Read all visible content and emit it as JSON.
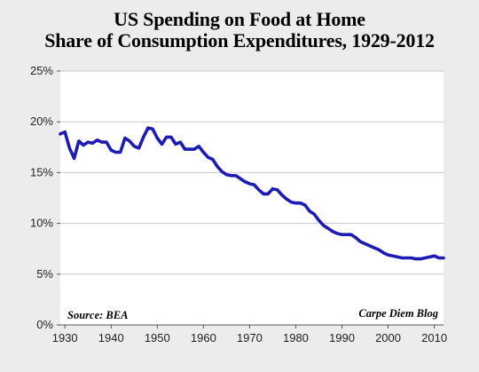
{
  "chart_data": {
    "type": "line",
    "title_lines": [
      "US Spending on Food at Home",
      "Share of Consumption Expenditures, 1929-2012"
    ],
    "xlabel": "",
    "ylabel": "",
    "xlim": [
      1929,
      2012
    ],
    "ylim": [
      0,
      25
    ],
    "x_ticks": [
      {
        "value": 1930,
        "label": "1930"
      },
      {
        "value": 1940,
        "label": "1940"
      },
      {
        "value": 1950,
        "label": "1950"
      },
      {
        "value": 1960,
        "label": "1960"
      },
      {
        "value": 1970,
        "label": "1970"
      },
      {
        "value": 1980,
        "label": "1980"
      },
      {
        "value": 1990,
        "label": "1990"
      },
      {
        "value": 2000,
        "label": "2000"
      },
      {
        "value": 2010,
        "label": "2010"
      }
    ],
    "y_ticks": [
      {
        "value": 0,
        "label": "0%"
      },
      {
        "value": 5,
        "label": "5%"
      },
      {
        "value": 10,
        "label": "10%"
      },
      {
        "value": 15,
        "label": "15%"
      },
      {
        "value": 20,
        "label": "20%"
      },
      {
        "value": 25,
        "label": "25%"
      }
    ],
    "grid": true,
    "source_note": "Source: BEA",
    "credit_note": "Carpe Diem Blog",
    "colors": {
      "line": "#1c1cb4",
      "plot_background": "#ffffff",
      "page_background": "#ececec",
      "grid": "#c8c8c8",
      "axis": "#555555"
    },
    "series": [
      {
        "x": [
          1929,
          1930,
          1931,
          1932,
          1933,
          1934,
          1935,
          1936,
          1937,
          1938,
          1939,
          1940,
          1941,
          1942,
          1943,
          1944,
          1945,
          1946,
          1947,
          1948,
          1949,
          1950,
          1951,
          1952,
          1953,
          1954,
          1955,
          1956,
          1957,
          1958,
          1959,
          1960,
          1961,
          1962,
          1963,
          1964,
          1965,
          1966,
          1967,
          1968,
          1969,
          1970,
          1971,
          1972,
          1973,
          1974,
          1975,
          1976,
          1977,
          1978,
          1979,
          1980,
          1981,
          1982,
          1983,
          1984,
          1985,
          1986,
          1987,
          1988,
          1989,
          1990,
          1991,
          1992,
          1993,
          1994,
          1995,
          1996,
          1997,
          1998,
          1999,
          2000,
          2001,
          2002,
          2003,
          2004,
          2005,
          2006,
          2007,
          2008,
          2009,
          2010,
          2011,
          2012
        ],
        "values": [
          18.8,
          19.0,
          17.4,
          16.4,
          18.1,
          17.7,
          18.0,
          17.9,
          18.2,
          18.0,
          18.0,
          17.2,
          17.0,
          17.0,
          18.4,
          18.1,
          17.6,
          17.4,
          18.5,
          19.4,
          19.3,
          18.4,
          17.8,
          18.5,
          18.5,
          17.8,
          18.0,
          17.3,
          17.3,
          17.3,
          17.6,
          17.0,
          16.5,
          16.3,
          15.6,
          15.1,
          14.8,
          14.7,
          14.7,
          14.4,
          14.1,
          13.9,
          13.8,
          13.3,
          12.9,
          12.9,
          13.4,
          13.3,
          12.8,
          12.4,
          12.1,
          12.0,
          12.0,
          11.8,
          11.2,
          10.9,
          10.3,
          9.8,
          9.5,
          9.2,
          9.0,
          8.9,
          8.9,
          8.9,
          8.6,
          8.2,
          8.0,
          7.8,
          7.6,
          7.4,
          7.1,
          6.9,
          6.8,
          6.7,
          6.6,
          6.6,
          6.6,
          6.5,
          6.5,
          6.6,
          6.7,
          6.8,
          6.6,
          6.6
        ]
      }
    ]
  }
}
